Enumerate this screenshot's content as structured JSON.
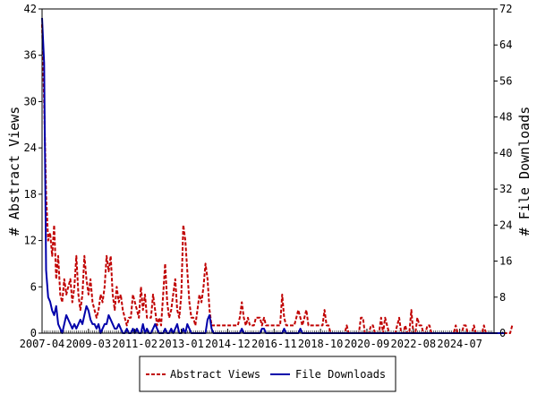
{
  "chart_data": {
    "type": "line",
    "xlabel": "",
    "ylabel_left": "# Abstract Views",
    "ylabel_right": "# File Downloads",
    "ylim_left": [
      0,
      42
    ],
    "ylim_right": [
      0,
      72
    ],
    "yticks_left": [
      "0",
      "6",
      "12",
      "18",
      "24",
      "30",
      "36",
      "42"
    ],
    "yticks_right": [
      "0",
      "8",
      "16",
      "24",
      "32",
      "40",
      "48",
      "56",
      "64",
      "72"
    ],
    "x_range": [
      "2007-04",
      "2025-12"
    ],
    "x_tick_labels": [
      "2007-04",
      "2009-03",
      "2011-02",
      "2013-01",
      "2014-12",
      "2016-11",
      "2018-10",
      "2020-09",
      "2022-08",
      "2024-07"
    ],
    "grid": false,
    "legend_position": "bottom",
    "series": [
      {
        "name": "Abstract Views",
        "axis": "left",
        "color": "#c00000",
        "style": "dashed",
        "values": [
          40,
          30,
          18,
          12,
          13,
          10,
          14,
          7,
          10,
          5,
          4,
          7,
          5,
          6,
          7,
          4,
          6,
          10,
          5,
          3,
          5,
          10,
          7,
          5,
          7,
          4,
          3,
          2,
          3,
          5,
          4,
          6,
          10,
          8,
          10,
          5,
          3,
          6,
          4,
          5,
          3,
          2,
          1,
          2,
          2,
          5,
          4,
          3,
          2,
          6,
          3,
          5,
          2,
          2,
          2,
          5,
          3,
          1,
          2,
          1,
          5,
          9,
          4,
          2,
          3,
          5,
          7,
          3,
          2,
          5,
          14,
          12,
          8,
          4,
          2,
          2,
          1,
          3,
          5,
          4,
          6,
          9,
          7,
          3,
          1,
          1,
          1,
          1,
          1,
          1,
          1,
          1,
          1,
          1,
          1,
          1,
          1,
          1,
          2,
          4,
          2,
          1,
          2,
          1,
          1,
          1,
          2,
          2,
          2,
          1,
          2,
          1,
          1,
          1,
          1,
          1,
          1,
          1,
          1,
          5,
          2,
          1,
          1,
          1,
          1,
          1,
          2,
          3,
          2,
          1,
          2,
          3,
          1,
          1,
          1,
          1,
          1,
          1,
          1,
          1,
          3,
          1,
          1,
          0,
          0,
          0,
          0,
          0,
          0,
          0,
          0,
          1,
          0,
          0,
          0,
          0,
          0,
          0,
          2,
          2,
          0,
          0,
          0,
          1,
          1,
          0,
          0,
          0,
          2,
          0,
          2,
          1,
          0,
          0,
          0,
          0,
          1,
          2,
          0,
          0,
          1,
          0,
          0,
          3,
          0,
          0,
          2,
          1,
          1,
          0,
          0,
          1,
          1,
          0,
          0,
          0,
          0,
          0,
          0,
          0,
          0,
          0,
          0,
          0,
          0,
          1,
          0,
          0,
          0,
          1,
          1,
          0,
          0,
          0,
          1,
          0,
          0,
          0,
          0,
          1,
          0,
          0,
          0,
          0,
          0,
          0,
          0,
          0,
          0,
          0,
          0,
          0,
          0,
          1
        ]
      },
      {
        "name": "File Downloads",
        "axis": "right",
        "color": "#0000aa",
        "style": "solid",
        "values": [
          70,
          60,
          14,
          8,
          7,
          5,
          4,
          6,
          2,
          1,
          0,
          2,
          4,
          3,
          2,
          1,
          2,
          1,
          2,
          3,
          2,
          4,
          6,
          5,
          3,
          2,
          2,
          1,
          2,
          0,
          1,
          2,
          2,
          4,
          3,
          2,
          1,
          1,
          2,
          1,
          0,
          0,
          1,
          0,
          0,
          1,
          0,
          1,
          0,
          0,
          2,
          0,
          1,
          0,
          0,
          1,
          2,
          1,
          0,
          0,
          0,
          1,
          0,
          0,
          1,
          0,
          1,
          2,
          0,
          0,
          1,
          0,
          2,
          1,
          0,
          0,
          0,
          0,
          0,
          0,
          0,
          0,
          3,
          4,
          1,
          0,
          0,
          0,
          0,
          0,
          0,
          0,
          0,
          0,
          0,
          0,
          0,
          0,
          0,
          1,
          0,
          0,
          0,
          0,
          0,
          0,
          0,
          0,
          0,
          1,
          1,
          0,
          0,
          0,
          0,
          0,
          0,
          0,
          0,
          0,
          1,
          0,
          0,
          0,
          0,
          0,
          0,
          0,
          1,
          0,
          0,
          0,
          0,
          0,
          0,
          0,
          0,
          0,
          0,
          0,
          0,
          0,
          0,
          0,
          0,
          0,
          0,
          0,
          0,
          0,
          0,
          0,
          0,
          0,
          0,
          0,
          0,
          0,
          0,
          0,
          0,
          0,
          0,
          0,
          0,
          0,
          0,
          0,
          0,
          0,
          0,
          0,
          0,
          0,
          0,
          0,
          0,
          0,
          0,
          0,
          0,
          0,
          0,
          0,
          0,
          0,
          0,
          0,
          0,
          0,
          0,
          0,
          0,
          0,
          0,
          0,
          0,
          0,
          0,
          0,
          0,
          0,
          0,
          0,
          0,
          0,
          0,
          0,
          0,
          0,
          0,
          0,
          0,
          0,
          0,
          0,
          0,
          0,
          0,
          0,
          0,
          0,
          0,
          0,
          0,
          0,
          0,
          0,
          0,
          0
        ]
      }
    ]
  }
}
